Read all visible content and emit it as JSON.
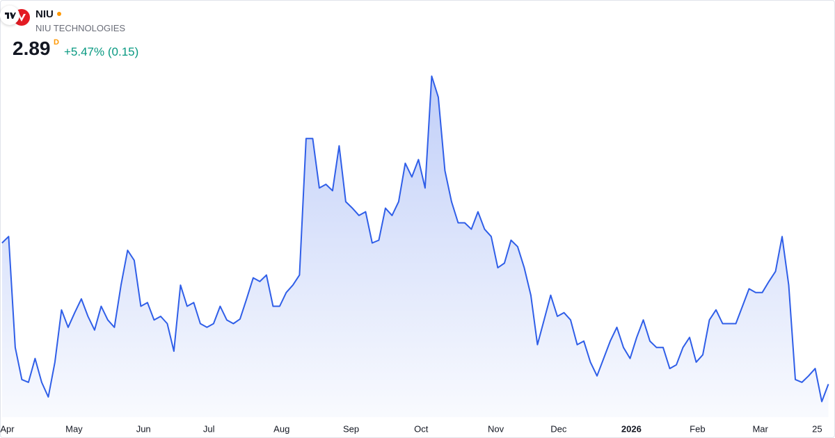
{
  "header": {
    "symbol": "NIU",
    "name": "NIU TECHNOLOGIES",
    "price": "2.89",
    "interval": "D",
    "change": "+5.47% (0.15)"
  },
  "chart_data": {
    "type": "area",
    "color": "#2f5ee8",
    "values": [
      4.43,
      4.5,
      3.29,
      2.94,
      2.91,
      3.17,
      2.91,
      2.75,
      3.13,
      3.7,
      3.51,
      3.67,
      3.82,
      3.63,
      3.48,
      3.74,
      3.59,
      3.51,
      3.97,
      4.35,
      4.24,
      3.74,
      3.78,
      3.59,
      3.63,
      3.55,
      3.25,
      3.97,
      3.74,
      3.78,
      3.55,
      3.51,
      3.55,
      3.74,
      3.59,
      3.55,
      3.6,
      3.82,
      4.05,
      4.01,
      4.08,
      3.74,
      3.74,
      3.89,
      3.97,
      4.08,
      5.57,
      5.57,
      5.03,
      5.07,
      5.0,
      5.49,
      4.88,
      4.81,
      4.73,
      4.77,
      4.43,
      4.46,
      4.81,
      4.73,
      4.88,
      5.3,
      5.15,
      5.34,
      5.03,
      6.25,
      6.02,
      5.22,
      4.88,
      4.65,
      4.65,
      4.58,
      4.77,
      4.58,
      4.5,
      4.16,
      4.21,
      4.46,
      4.39,
      4.16,
      3.86,
      3.32,
      3.59,
      3.86,
      3.63,
      3.67,
      3.59,
      3.32,
      3.36,
      3.13,
      2.98,
      3.17,
      3.36,
      3.51,
      3.29,
      3.17,
      3.4,
      3.59,
      3.36,
      3.29,
      3.29,
      3.06,
      3.1,
      3.29,
      3.4,
      3.13,
      3.21,
      3.59,
      3.7,
      3.55,
      3.55,
      3.55,
      3.74,
      3.93,
      3.89,
      3.89,
      4.01,
      4.12,
      4.5,
      3.97,
      2.94,
      2.91,
      2.98,
      3.06,
      2.7,
      2.89
    ],
    "xlim": [
      -0.3,
      126
    ],
    "ylim": [
      2.53,
      6.36
    ],
    "xticks": [
      {
        "value": 0.8,
        "label": "Apr"
      },
      {
        "value": 10.9,
        "label": "May"
      },
      {
        "value": 21.4,
        "label": "Jun"
      },
      {
        "value": 31.3,
        "label": "Jul"
      },
      {
        "value": 42.3,
        "label": "Aug"
      },
      {
        "value": 52.8,
        "label": "Sep"
      },
      {
        "value": 63.4,
        "label": "Oct"
      },
      {
        "value": 74.7,
        "label": "Nov"
      },
      {
        "value": 84.2,
        "label": "Dec"
      },
      {
        "value": 95.2,
        "label": "2026"
      },
      {
        "value": 105.2,
        "label": "Feb"
      },
      {
        "value": 114.7,
        "label": "Mar"
      },
      {
        "value": 123.3,
        "label": "25"
      }
    ]
  }
}
